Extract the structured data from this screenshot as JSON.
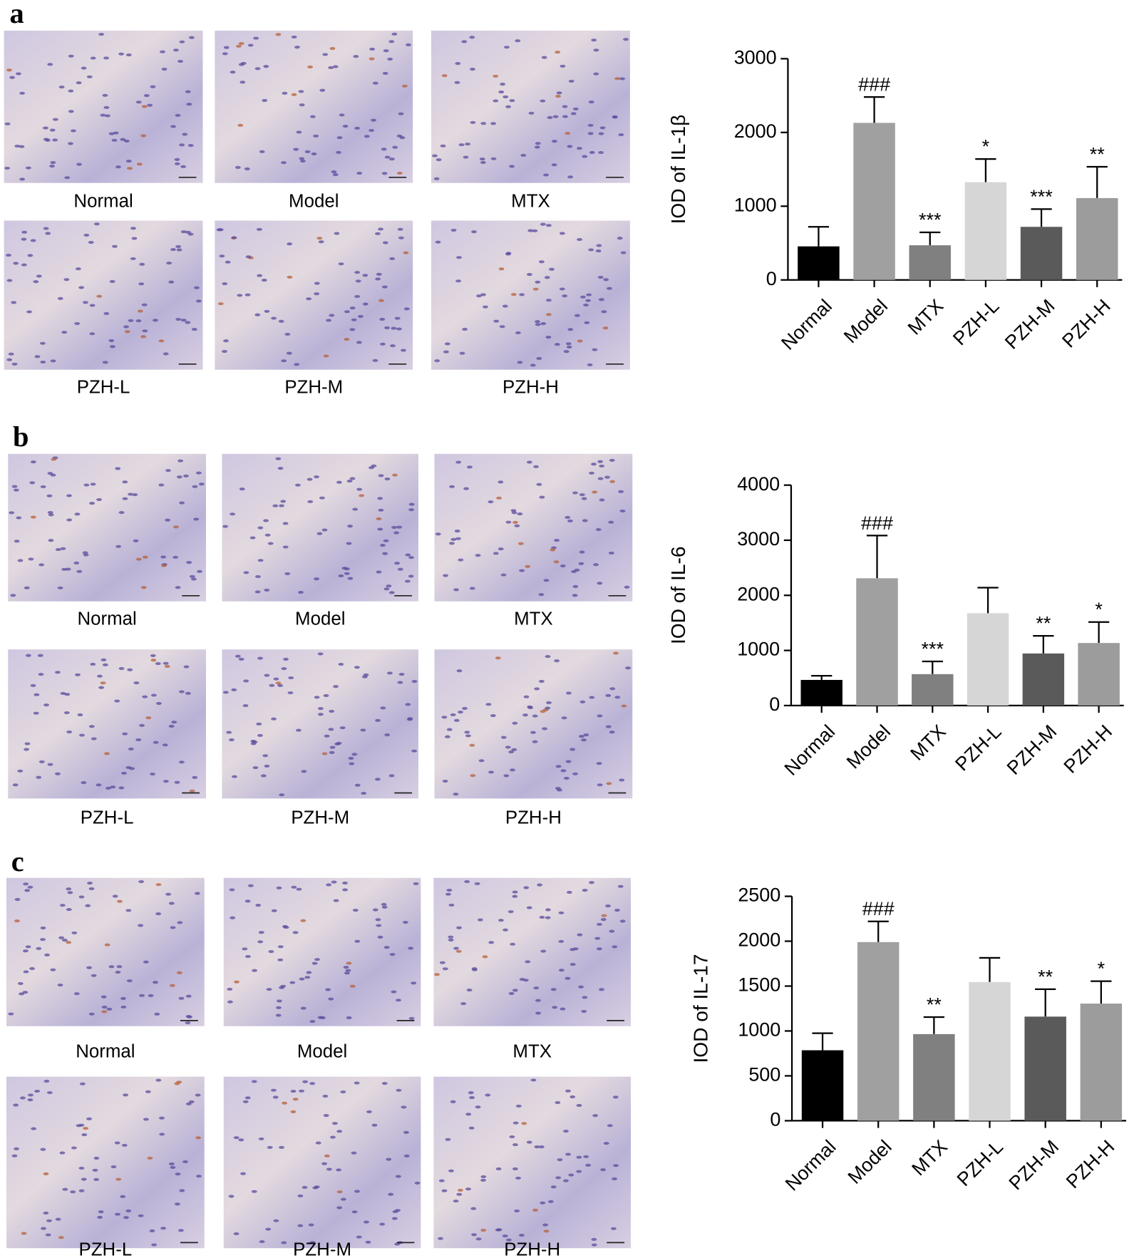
{
  "panels": [
    {
      "label": "a",
      "captions": [
        "Normal",
        "Model",
        "MTX",
        "PZH-L",
        "PZH-M",
        "PZH-H"
      ]
    },
    {
      "label": "b",
      "captions": [
        "Normal",
        "Model",
        "MTX",
        "PZH-L",
        "PZH-M",
        "PZH-H"
      ]
    },
    {
      "label": "c",
      "captions": [
        "Normal",
        "Model",
        "MTX",
        "PZH-L",
        "PZH-M",
        "PZH-H"
      ]
    }
  ],
  "chart_data": [
    {
      "type": "bar",
      "y_label": "IOD of IL-1β",
      "categories": [
        "Normal",
        "Model",
        "MTX",
        "PZH-L",
        "PZH-M",
        "PZH-H"
      ],
      "values": [
        455,
        2130,
        470,
        1325,
        720,
        1110
      ],
      "errors": [
        265,
        350,
        175,
        315,
        240,
        425
      ],
      "annotations": [
        null,
        "###",
        "***",
        "*",
        "***",
        "**"
      ],
      "colors": [
        "#000000",
        "#a0a0a0",
        "#808080",
        "#d6d6d6",
        "#5a5a5a",
        "#9c9c9c"
      ],
      "ylim": [
        0,
        3000
      ],
      "yticks": [
        0,
        1000,
        2000,
        3000
      ]
    },
    {
      "type": "bar",
      "y_label": "IOD of IL-6",
      "categories": [
        "Normal",
        "Model",
        "MTX",
        "PZH-L",
        "PZH-M",
        "PZH-H"
      ],
      "values": [
        465,
        2310,
        570,
        1675,
        945,
        1135
      ],
      "errors": [
        75,
        775,
        230,
        465,
        320,
        380
      ],
      "annotations": [
        null,
        "###",
        "***",
        null,
        "**",
        "*"
      ],
      "colors": [
        "#000000",
        "#a0a0a0",
        "#808080",
        "#d6d6d6",
        "#5a5a5a",
        "#9c9c9c"
      ],
      "ylim": [
        0,
        4000
      ],
      "yticks": [
        0,
        1000,
        2000,
        3000,
        4000
      ]
    },
    {
      "type": "bar",
      "y_label": "IOD of IL-17",
      "categories": [
        "Normal",
        "Model",
        "MTX",
        "PZH-L",
        "PZH-M",
        "PZH-H"
      ],
      "values": [
        785,
        1990,
        965,
        1545,
        1160,
        1305
      ],
      "errors": [
        190,
        230,
        190,
        270,
        305,
        250
      ],
      "annotations": [
        null,
        "###",
        "**",
        null,
        "**",
        "*"
      ],
      "colors": [
        "#000000",
        "#a0a0a0",
        "#808080",
        "#d6d6d6",
        "#5a5a5a",
        "#9c9c9c"
      ],
      "ylim": [
        0,
        2500
      ],
      "yticks": [
        0,
        500,
        1000,
        1500,
        2000,
        2500
      ]
    }
  ]
}
